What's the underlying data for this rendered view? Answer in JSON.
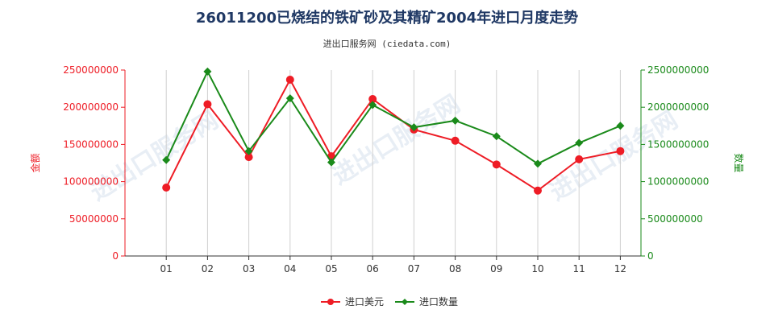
{
  "title": "26011200已烧结的铁矿砂及其精矿2004年进口月度走势",
  "subtitle": "进出口服务网 (ciedata.com)",
  "watermark": "进出口服务网",
  "chart_data": {
    "type": "line",
    "categories": [
      "01",
      "02",
      "03",
      "04",
      "05",
      "06",
      "07",
      "08",
      "09",
      "10",
      "11",
      "12"
    ],
    "series": [
      {
        "name": "进口美元",
        "axis": "left",
        "color": "#ee1c25",
        "values": [
          92000000,
          204000000,
          133000000,
          237000000,
          134000000,
          211000000,
          170000000,
          155000000,
          123000000,
          88000000,
          130000000,
          141000000
        ]
      },
      {
        "name": "进口数量",
        "axis": "right",
        "color": "#1a8a1a",
        "values": [
          1290000000,
          2480000000,
          1410000000,
          2120000000,
          1260000000,
          2030000000,
          1730000000,
          1820000000,
          1610000000,
          1240000000,
          1520000000,
          1750000000
        ]
      }
    ],
    "y_left": {
      "label": "金额",
      "min": 0,
      "max": 250000000,
      "ticks": [
        "0",
        "50000000",
        "100000000",
        "150000000",
        "200000000",
        "250000000"
      ],
      "color": "#ee1c25"
    },
    "y_right": {
      "label": "数量",
      "min": 0,
      "max": 2500000000,
      "ticks": [
        "0",
        "500000000",
        "1000000000",
        "1500000000",
        "2000000000",
        "2500000000"
      ],
      "color": "#1a8a1a"
    },
    "grid": "vertical",
    "legend": "bottom-center"
  }
}
